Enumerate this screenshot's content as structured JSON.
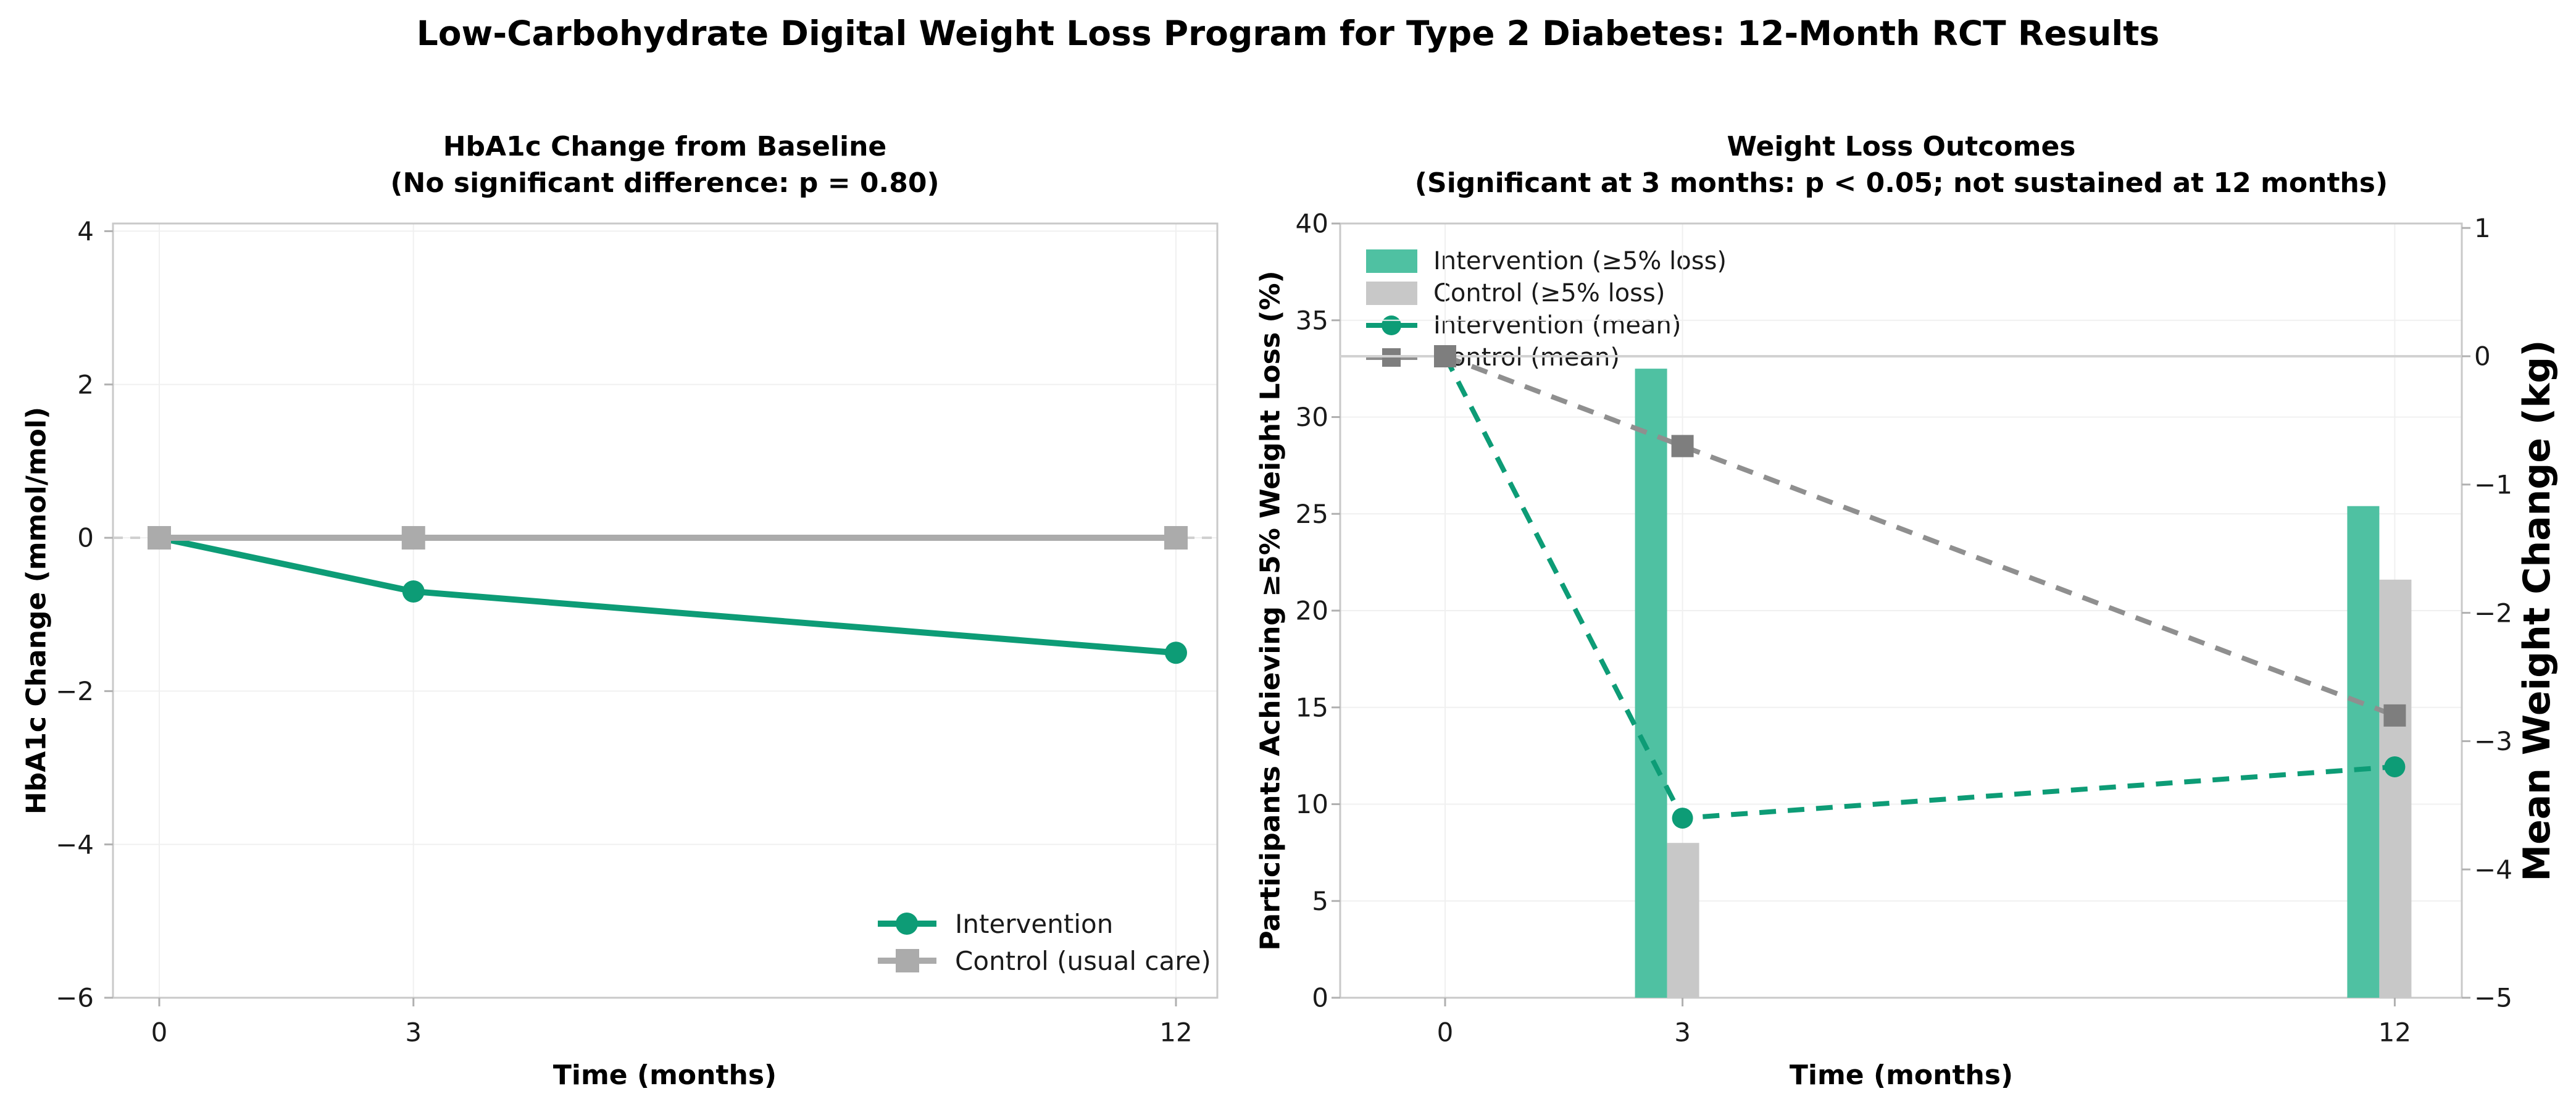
{
  "figure": {
    "title": "Low-Carbohydrate Digital Weight Loss Program for Type 2 Diabetes: 12-Month RCT Results"
  },
  "colors": {
    "intervention_line": "#0d9c76",
    "intervention_bar": "#4fc1a2",
    "control_bar": "#c8c8c8",
    "control_line": "#ababab",
    "control_mean_line": "#8f8f8f",
    "control_mean_marker": "#7e7e7e",
    "zero_line_solid": "#d2d2d2",
    "zero_line_dashed": "#d0d0d0",
    "grid": "#f0f0f0",
    "spine": "#c9c9c9",
    "tick": "#b0b0b0",
    "text": "#1a1a1a"
  },
  "chart_data": [
    {
      "type": "line",
      "title": "HbA1c Change from Baseline",
      "subtitle": "(No significant difference: p = 0.80)",
      "xlabel": "Time (months)",
      "ylabel": "HbA1c Change (mmol/mol)",
      "x": [
        0,
        3,
        12
      ],
      "xtick_labels": [
        "0",
        "3",
        "12"
      ],
      "ylim": [
        -6,
        4.1
      ],
      "ytick_values": [
        4,
        2,
        0,
        -2,
        -4,
        -6
      ],
      "ytick_labels": [
        "4",
        "2",
        "0",
        "−2",
        "−4",
        "−6"
      ],
      "series": [
        {
          "name": "Intervention",
          "values": [
            0,
            -0.7,
            -1.5
          ]
        },
        {
          "name": "Control (usual care)",
          "values": [
            0,
            0,
            0
          ]
        }
      ],
      "legend": [
        "Intervention",
        "Control (usual care)"
      ],
      "zero_reference_line": 0,
      "grid_on": true,
      "legend_position": "lower-right"
    },
    {
      "type": "bar+line",
      "title": "Weight Loss Outcomes",
      "subtitle": "(Significant at 3 months: p < 0.05; not sustained at 12 months)",
      "xlabel": "Time (months)",
      "ylabel_left": "Participants Achieving ≥5% Weight Loss (%)",
      "ylabel_right": "Mean Weight Change (kg)",
      "x": [
        0,
        3,
        12
      ],
      "xtick_labels": [
        "0",
        "3",
        "12"
      ],
      "ylim_left": [
        0,
        40
      ],
      "ytick_left_values": [
        0,
        5,
        10,
        15,
        20,
        25,
        30,
        35,
        40
      ],
      "ytick_left_labels": [
        "0",
        "5",
        "10",
        "15",
        "20",
        "25",
        "30",
        "35",
        "40"
      ],
      "ylim_right": [
        -5,
        1
      ],
      "ytick_right_values": [
        1,
        0,
        -1,
        -2,
        -3,
        -4,
        -5
      ],
      "ytick_right_labels": [
        "1",
        "0",
        "−1",
        "−2",
        "−3",
        "−4",
        "−5"
      ],
      "bars": {
        "months": [
          3,
          12
        ],
        "intervention_pct": [
          32.5,
          25.4
        ],
        "control_pct": [
          8.0,
          21.6
        ]
      },
      "lines": {
        "intervention_mean_kg": [
          0,
          -3.6,
          -3.2
        ],
        "control_mean_kg": [
          0,
          -0.7,
          -2.8
        ]
      },
      "legend": [
        "Intervention (≥5% loss)",
        "Control (≥5% loss)",
        "Intervention (mean)",
        "Control (mean)"
      ],
      "zero_line_kg": 0,
      "grid_on": true,
      "legend_position": "upper-left"
    }
  ]
}
